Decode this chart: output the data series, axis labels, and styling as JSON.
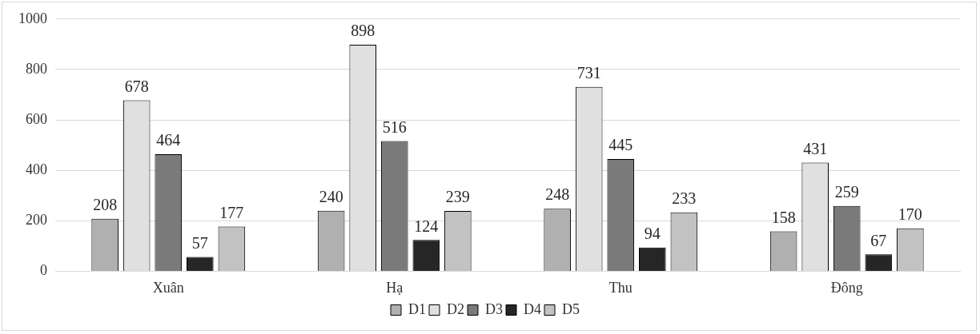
{
  "chart_data": {
    "type": "bar",
    "categories": [
      "Xuân",
      "Hạ",
      "Thu",
      "Đông"
    ],
    "series": [
      {
        "name": "D1",
        "color": "#b0b0b0",
        "values": [
          208,
          240,
          248,
          158
        ]
      },
      {
        "name": "D2",
        "color": "#e0e0e0",
        "values": [
          678,
          898,
          731,
          431
        ]
      },
      {
        "name": "D3",
        "color": "#7a7a7a",
        "values": [
          464,
          516,
          445,
          259
        ]
      },
      {
        "name": "D4",
        "color": "#262626",
        "values": [
          57,
          124,
          94,
          67
        ]
      },
      {
        "name": "D5",
        "color": "#c2c2c2",
        "values": [
          177,
          239,
          233,
          170
        ]
      }
    ],
    "ylim": [
      0,
      1000
    ],
    "yticks": [
      0,
      200,
      400,
      600,
      800,
      1000
    ],
    "grid": "y",
    "legend": "bottom",
    "data_labels": true
  }
}
